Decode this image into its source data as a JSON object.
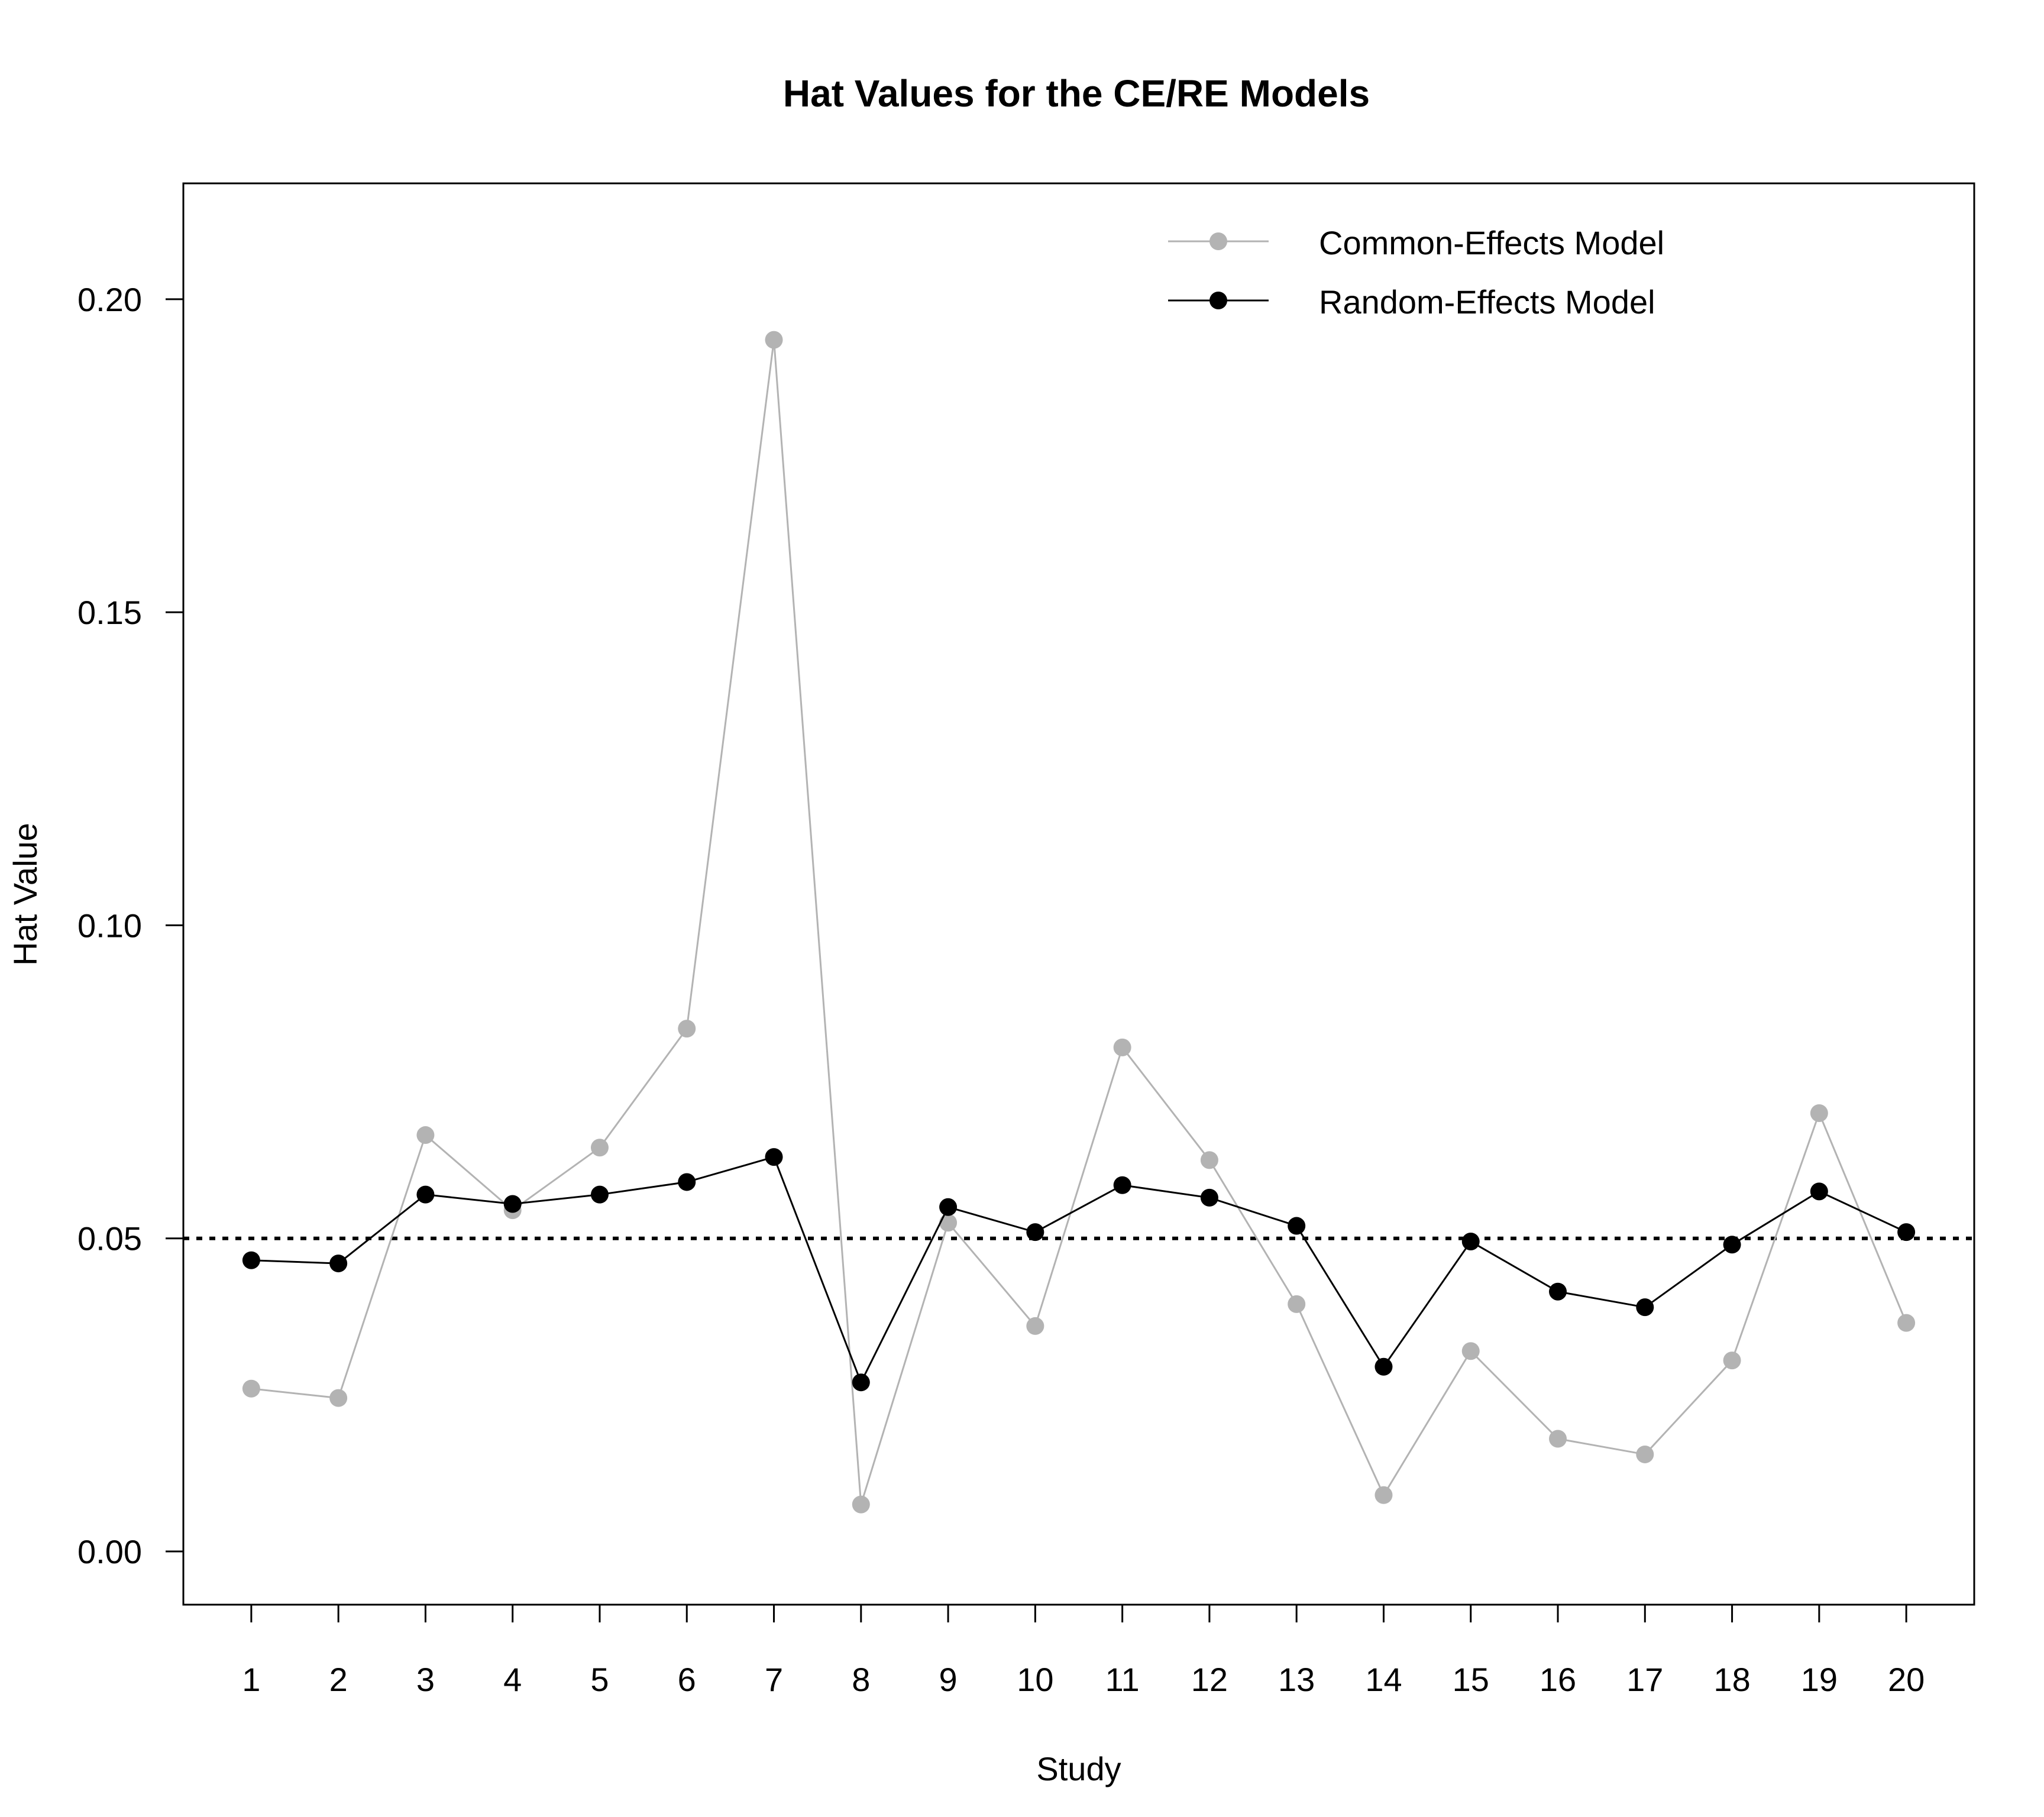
{
  "chart_data": {
    "type": "line",
    "title": "Hat Values for the CE/RE Models",
    "xlabel": "Study",
    "ylabel": "Hat Value",
    "x": [
      1,
      2,
      3,
      4,
      5,
      6,
      7,
      8,
      9,
      10,
      11,
      12,
      13,
      14,
      15,
      16,
      17,
      18,
      19,
      20
    ],
    "xticks": [
      "1",
      "2",
      "3",
      "4",
      "5",
      "6",
      "7",
      "8",
      "9",
      "10",
      "11",
      "12",
      "13",
      "14",
      "15",
      "16",
      "17",
      "18",
      "19",
      "20"
    ],
    "yticks": [
      0.0,
      0.05,
      0.1,
      0.15,
      0.2
    ],
    "ytick_labels": [
      "0.00",
      "0.05",
      "0.10",
      "0.15",
      "0.20"
    ],
    "xlim": [
      0.22,
      20.78
    ],
    "ylim": [
      -0.0085,
      0.2185
    ],
    "grid": false,
    "legend_position": "top-right",
    "reference_line": {
      "y": 0.05,
      "style": "dotted",
      "color": "#000000"
    },
    "series": [
      {
        "name": "Common-Effects Model",
        "color": "#b3b3b3",
        "values": [
          0.026,
          0.0245,
          0.0665,
          0.0545,
          0.0645,
          0.0835,
          0.1935,
          0.0075,
          0.0525,
          0.036,
          0.0805,
          0.0625,
          0.0395,
          0.009,
          0.032,
          0.018,
          0.0155,
          0.0305,
          0.07,
          0.0365
        ]
      },
      {
        "name": "Random-Effects Model",
        "color": "#000000",
        "values": [
          0.0465,
          0.046,
          0.057,
          0.0555,
          0.057,
          0.059,
          0.063,
          0.027,
          0.055,
          0.051,
          0.0585,
          0.0565,
          0.052,
          0.0295,
          0.0495,
          0.0415,
          0.039,
          0.049,
          0.0575,
          0.051
        ]
      }
    ]
  }
}
